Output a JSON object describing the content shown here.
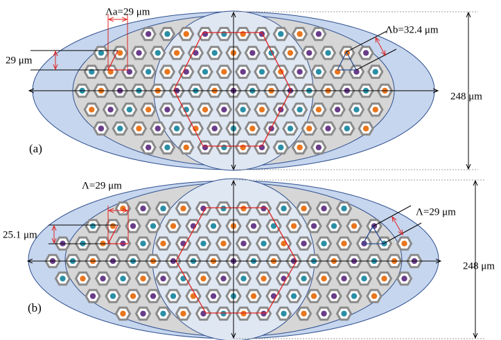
{
  "panel_a": {
    "label": "(a)",
    "pitch_horizontal": "Λa=29 μm",
    "row_spacing": "29 μm",
    "pitch_diagonal": "Λb=32.4 μm",
    "height": "248 μm"
  },
  "panel_b": {
    "label": "(b)",
    "pitch_horizontal": "Λ=29 μm",
    "row_spacing": "25.1 μm",
    "pitch_diagonal": "Λ=29 μm",
    "height": "248 μm"
  }
}
